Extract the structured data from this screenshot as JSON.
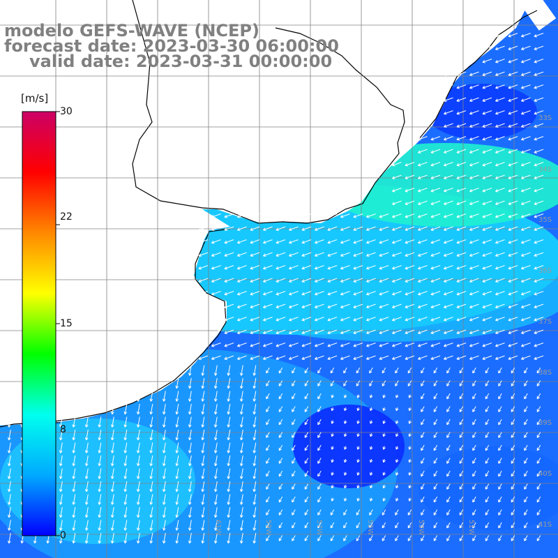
{
  "title": {
    "model": "modelo GEFS-WAVE (NCEP)",
    "forecast": "forecast date: 2023-03-30 06:00:00",
    "valid": "valid date: 2023-03-31 00:00:00"
  },
  "colorbar": {
    "unit": "[m/s]",
    "ticks": [
      "30",
      "22",
      "15",
      "8",
      "0"
    ],
    "tick_values": [
      30,
      22,
      15,
      8,
      0
    ],
    "min": 0,
    "max": 30,
    "colors": [
      "#0000ff",
      "#00aaff",
      "#00ffee",
      "#00ff00",
      "#ffff00",
      "#ff8800",
      "#ff0000",
      "#cc0066"
    ]
  },
  "map": {
    "lon_labels": [
      "61W",
      "59W",
      "57W",
      "55W",
      "53W",
      "51W"
    ],
    "lat_labels": [
      "33S",
      "34S",
      "35S",
      "36S",
      "37S",
      "38S",
      "39S",
      "40S",
      "41S"
    ],
    "land_color": "#ffffff",
    "grid_color": "#808080",
    "arrow_color": "#ffffff",
    "coast_color": "#000000"
  }
}
